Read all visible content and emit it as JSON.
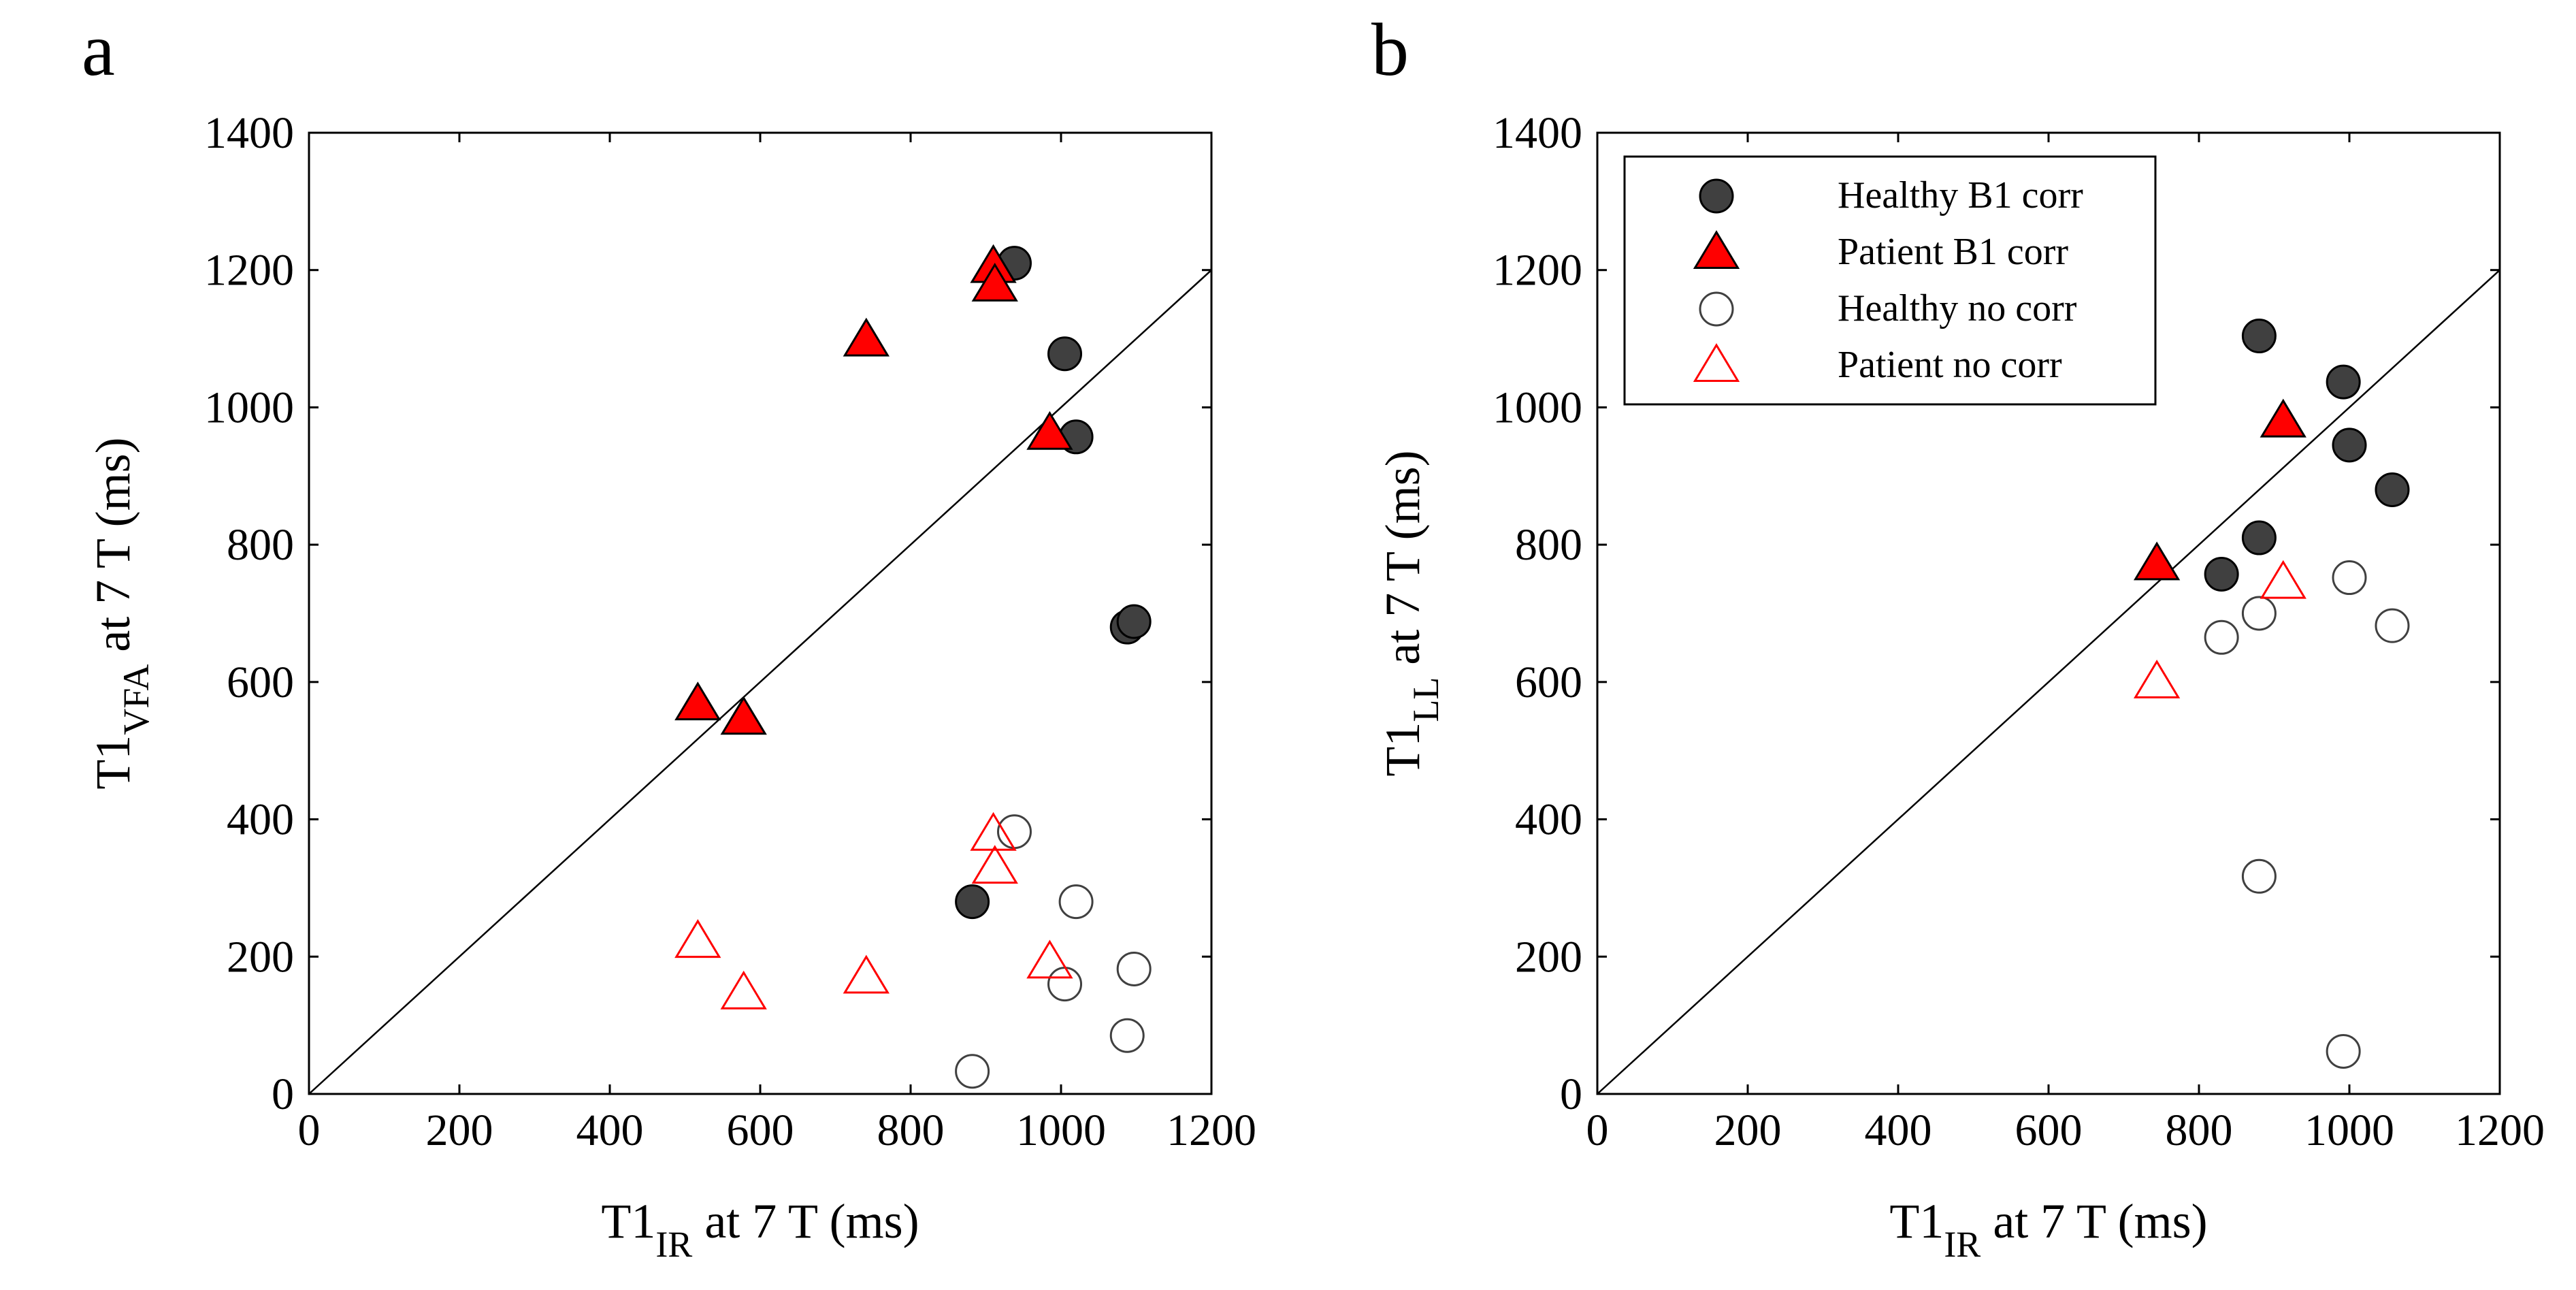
{
  "figure": {
    "panels": [
      "a",
      "b"
    ]
  },
  "legend": {
    "location": "top-left of panel b",
    "entries": [
      {
        "label": "Healthy B1 corr",
        "marker": "circle",
        "fill": "#404040",
        "edge": "#000000"
      },
      {
        "label": "Patient B1 corr",
        "marker": "triangle",
        "fill": "#ff0000",
        "edge": "#000000"
      },
      {
        "label": "Healthy no corr",
        "marker": "circle",
        "fill": "none",
        "edge": "#404040"
      },
      {
        "label": "Patient no corr",
        "marker": "triangle",
        "fill": "none",
        "edge": "#ff0000"
      }
    ]
  },
  "chart_data": [
    {
      "type": "scatter",
      "panel": "a",
      "xlabel": {
        "main": "T1",
        "sub": "IR",
        "rest": " at 7 T (ms)"
      },
      "ylabel": {
        "main": "T1",
        "sub": "VFA",
        "rest": " at 7 T (ms)"
      },
      "xlim": [
        0,
        1200
      ],
      "ylim": [
        0,
        1400
      ],
      "xticks": [
        0,
        200,
        400,
        600,
        800,
        1000,
        1200
      ],
      "yticks": [
        0,
        200,
        400,
        600,
        800,
        1000,
        1200,
        1400
      ],
      "identity_line": {
        "from": [
          0,
          0
        ],
        "to": [
          1200,
          1200
        ]
      },
      "series": [
        {
          "name": "Healthy B1 corr",
          "marker": "circle",
          "filled": true,
          "color": "#404040",
          "points": [
            [
              938,
              1210
            ],
            [
              1005,
              1078
            ],
            [
              1020,
              957
            ],
            [
              1088,
              680
            ],
            [
              1097,
              688
            ],
            [
              882,
              280
            ]
          ]
        },
        {
          "name": "Patient B1 corr",
          "marker": "triangle",
          "filled": true,
          "color": "#ff0000",
          "points": [
            [
              910,
              1205
            ],
            [
              912,
              1178
            ],
            [
              741,
              1098
            ],
            [
              985,
              962
            ],
            [
              517,
              568
            ],
            [
              578,
              547
            ]
          ]
        },
        {
          "name": "Healthy no corr",
          "marker": "circle",
          "filled": false,
          "color": "#404040",
          "points": [
            [
              938,
              382
            ],
            [
              1020,
              280
            ],
            [
              1097,
              182
            ],
            [
              1005,
              160
            ],
            [
              1088,
              85
            ],
            [
              882,
              33
            ]
          ]
        },
        {
          "name": "Patient no corr",
          "marker": "triangle",
          "filled": false,
          "color": "#ff0000",
          "points": [
            [
              910,
              378
            ],
            [
              912,
              330
            ],
            [
              517,
              222
            ],
            [
              985,
              192
            ],
            [
              741,
              170
            ],
            [
              578,
              147
            ]
          ]
        }
      ]
    },
    {
      "type": "scatter",
      "panel": "b",
      "xlabel": {
        "main": "T1",
        "sub": "IR",
        "rest": " at 7 T (ms)"
      },
      "ylabel": {
        "main": "T1",
        "sub": "LL",
        "rest": " at 7 T (ms)"
      },
      "xlim": [
        0,
        1200
      ],
      "ylim": [
        0,
        1400
      ],
      "xticks": [
        0,
        200,
        400,
        600,
        800,
        1000,
        1200
      ],
      "yticks": [
        0,
        200,
        400,
        600,
        800,
        1000,
        1200,
        1400
      ],
      "identity_line": {
        "from": [
          0,
          0
        ],
        "to": [
          1200,
          1200
        ]
      },
      "series": [
        {
          "name": "Healthy B1 corr",
          "marker": "circle",
          "filled": true,
          "color": "#404040",
          "points": [
            [
              880,
              1104
            ],
            [
              992,
              1037
            ],
            [
              1000,
              945
            ],
            [
              1057,
              880
            ],
            [
              880,
              810
            ],
            [
              830,
              757
            ]
          ]
        },
        {
          "name": "Patient B1 corr",
          "marker": "triangle",
          "filled": true,
          "color": "#ff0000",
          "points": [
            [
              912,
              980
            ],
            [
              744,
              772
            ]
          ]
        },
        {
          "name": "Healthy no corr",
          "marker": "circle",
          "filled": false,
          "color": "#404040",
          "points": [
            [
              1000,
              752
            ],
            [
              880,
              700
            ],
            [
              1057,
              682
            ],
            [
              830,
              665
            ],
            [
              880,
              317
            ],
            [
              992,
              62
            ]
          ]
        },
        {
          "name": "Patient no corr",
          "marker": "triangle",
          "filled": false,
          "color": "#ff0000",
          "points": [
            [
              912,
              745
            ],
            [
              744,
              600
            ]
          ]
        }
      ]
    }
  ]
}
